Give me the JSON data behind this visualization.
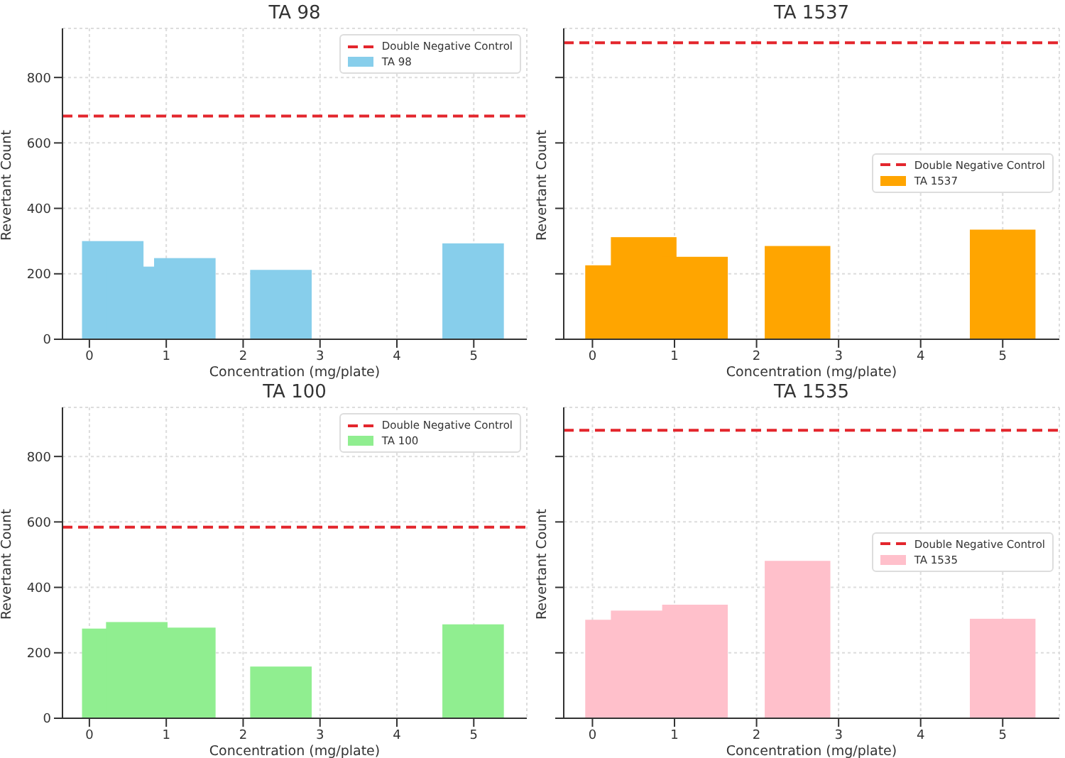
{
  "chart_data": [
    {
      "type": "bar",
      "title": "TA 98",
      "xlabel": "Concentration (mg/plate)",
      "ylabel": "Revertant Count",
      "x": [
        0.3125,
        0.625,
        1.25,
        2.5,
        5
      ],
      "series": [
        {
          "name": "TA 98",
          "color": "#87ceeb",
          "values": [
            300,
            222,
            248,
            212,
            293
          ]
        }
      ],
      "xlim": [
        -0.35,
        5.69
      ],
      "xticks": [
        0,
        1,
        2,
        3,
        4,
        5
      ],
      "ylim": [
        0,
        950
      ],
      "yticks": [
        0,
        200,
        400,
        600,
        800
      ],
      "ref_lines": [
        {
          "axis": "y",
          "value": 682,
          "label": "Double Negative Control",
          "color": "#e3262d",
          "line_style": "dashed"
        }
      ],
      "grid": true,
      "legend": "top right"
    },
    {
      "type": "bar",
      "title": "TA 1537",
      "xlabel": "Concentration (mg/plate)",
      "ylabel": "Revertant Count",
      "x": [
        0.3125,
        0.625,
        1.25,
        2.5,
        5
      ],
      "series": [
        {
          "name": "TA 1537",
          "color": "#ffa500",
          "values": [
            226,
            312,
            252,
            285,
            335
          ]
        }
      ],
      "xlim": [
        -0.35,
        5.69
      ],
      "xticks": [
        0,
        1,
        2,
        3,
        4,
        5
      ],
      "ylim": [
        0,
        950
      ],
      "yticks": [
        0,
        200,
        400,
        600,
        800
      ],
      "tick_labels": "x",
      "ref_lines": [
        {
          "axis": "y",
          "value": 906,
          "label": "Double Negative Control",
          "color": "#e3262d",
          "line_style": "dashed"
        }
      ],
      "grid": true,
      "legend": "right"
    },
    {
      "type": "bar",
      "title": "TA 100",
      "xlabel": "Concentration (mg/plate)",
      "ylabel": "Revertant Count",
      "x": [
        0.3125,
        0.625,
        1.25,
        2.5,
        5
      ],
      "series": [
        {
          "name": "TA 100",
          "color": "#90ee90",
          "values": [
            274,
            294,
            277,
            158,
            287
          ]
        }
      ],
      "xlim": [
        -0.35,
        5.69
      ],
      "xticks": [
        0,
        1,
        2,
        3,
        4,
        5
      ],
      "ylim": [
        0,
        950
      ],
      "yticks": [
        0,
        200,
        400,
        600,
        800
      ],
      "ref_lines": [
        {
          "axis": "y",
          "value": 584,
          "label": "Double Negative Control",
          "color": "#e3262d",
          "line_style": "dashed"
        }
      ],
      "grid": true,
      "legend": "top right"
    },
    {
      "type": "bar",
      "title": "TA 1535",
      "xlabel": "Concentration (mg/plate)",
      "ylabel": "Revertant Count",
      "x": [
        0.3125,
        0.625,
        1.25,
        2.5,
        5
      ],
      "series": [
        {
          "name": "TA 1535",
          "color": "#ffc0cb",
          "values": [
            301,
            329,
            347,
            481,
            304
          ]
        }
      ],
      "xlim": [
        -0.35,
        5.69
      ],
      "xticks": [
        0,
        1,
        2,
        3,
        4,
        5
      ],
      "ylim": [
        0,
        950
      ],
      "yticks": [
        0,
        200,
        400,
        600,
        800
      ],
      "tick_labels": "x",
      "ref_lines": [
        {
          "axis": "y",
          "value": 880,
          "label": "Double Negative Control",
          "color": "#e3262d",
          "line_style": "dashed"
        }
      ],
      "grid": true,
      "legend": "right"
    }
  ]
}
